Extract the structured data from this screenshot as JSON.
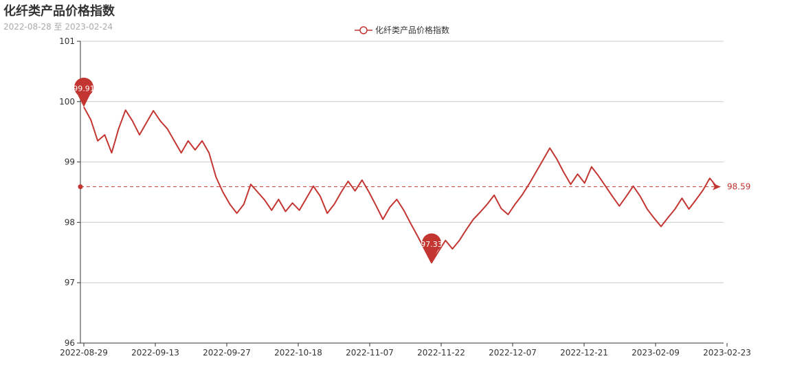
{
  "header": {
    "title": "化纤类产品价格指数",
    "subtitle": "2022-08-28 至 2023-02-24"
  },
  "colors": {
    "series": "#c23531",
    "grid": "#cccccc",
    "axis": "#333333"
  },
  "chart_data": {
    "type": "line",
    "title": "化纤类产品价格指数",
    "subtitle": "2022-08-28 至 2023-02-24",
    "xlabel": "",
    "ylabel": "",
    "legend": {
      "placement": "top-center",
      "entries": [
        "化纤类产品价格指数"
      ]
    },
    "ylim": [
      96,
      101
    ],
    "y_ticks": [
      96,
      97,
      98,
      99,
      100,
      101
    ],
    "x_tick_labels": [
      "2022-08-29",
      "2022-09-13",
      "2022-09-27",
      "2022-10-18",
      "2022-11-07",
      "2022-11-22",
      "2022-12-07",
      "2022-12-21",
      "2023-02-09",
      "2023-02-23"
    ],
    "grid": true,
    "series": [
      {
        "name": "化纤类产品价格指数",
        "values": [
          99.91,
          99.7,
          99.35,
          99.45,
          99.15,
          99.55,
          99.86,
          99.68,
          99.45,
          99.65,
          99.85,
          99.68,
          99.55,
          99.35,
          99.15,
          99.35,
          99.2,
          99.35,
          99.15,
          98.75,
          98.5,
          98.3,
          98.15,
          98.3,
          98.63,
          98.5,
          98.37,
          98.2,
          98.38,
          98.18,
          98.32,
          98.2,
          98.4,
          98.6,
          98.43,
          98.15,
          98.3,
          98.5,
          98.68,
          98.52,
          98.7,
          98.5,
          98.28,
          98.05,
          98.25,
          98.38,
          98.2,
          97.98,
          97.77,
          97.55,
          97.33,
          97.52,
          97.7,
          97.56,
          97.7,
          97.88,
          98.05,
          98.17,
          98.3,
          98.45,
          98.23,
          98.13,
          98.3,
          98.45,
          98.63,
          98.83,
          99.03,
          99.23,
          99.05,
          98.83,
          98.63,
          98.8,
          98.65,
          98.92,
          98.77,
          98.6,
          98.43,
          98.27,
          98.43,
          98.6,
          98.43,
          98.22,
          98.07,
          97.93,
          98.08,
          98.22,
          98.4,
          98.22,
          98.37,
          98.53,
          98.73,
          98.59
        ]
      }
    ],
    "markers": {
      "max": 99.91,
      "min": 97.33,
      "max_label": "99.91",
      "min_label": "97.33"
    },
    "average": {
      "value": 98.59,
      "label": "98.59"
    }
  }
}
